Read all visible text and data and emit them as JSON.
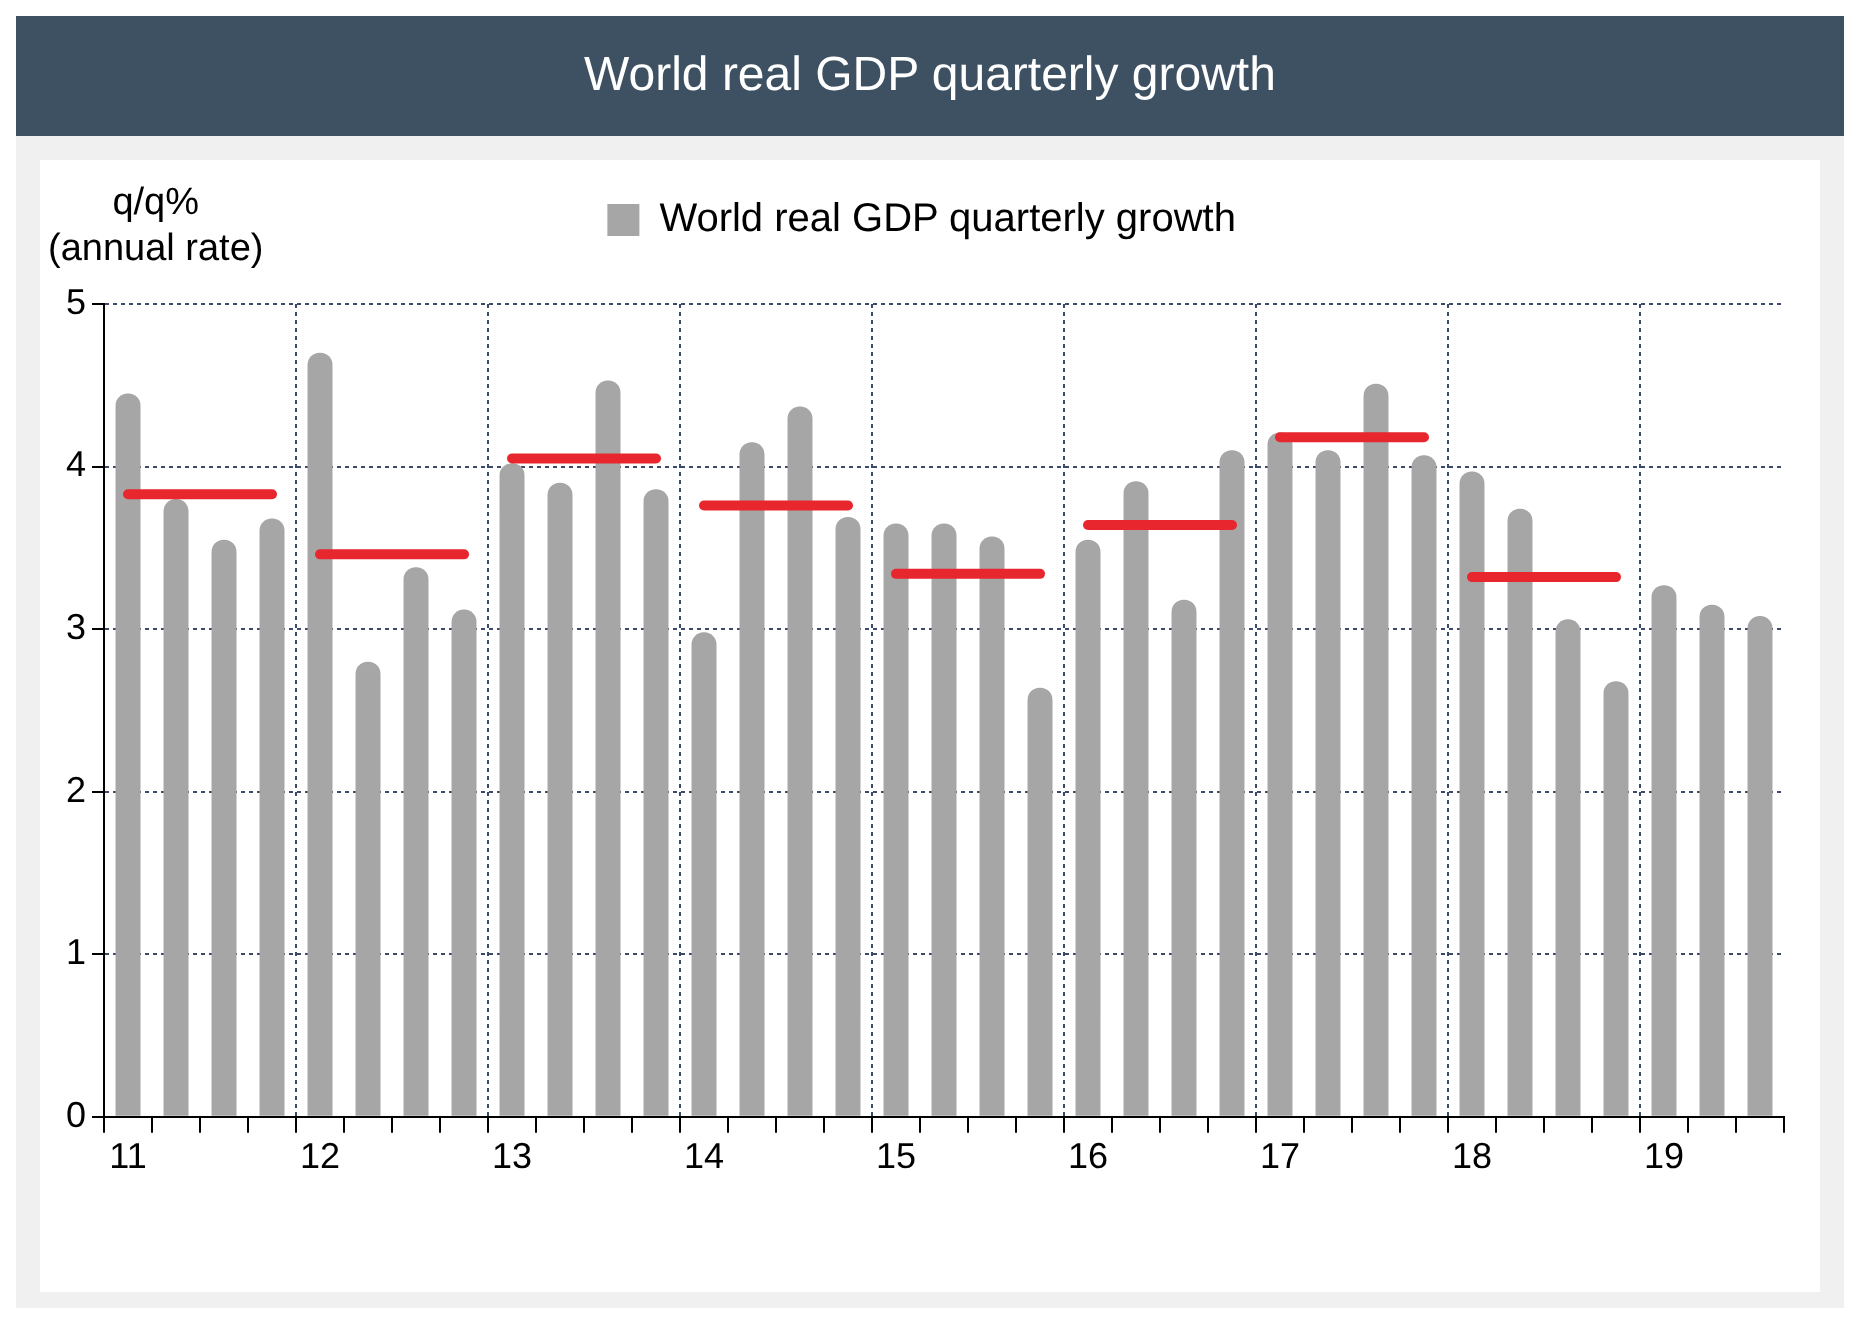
{
  "chart_data": {
    "type": "bar",
    "title": "World real GDP quarterly growth",
    "ylabel": "q/q%\n(annual rate)",
    "categories": [
      "11",
      null,
      null,
      null,
      "12",
      null,
      null,
      null,
      "13",
      null,
      null,
      null,
      "14",
      null,
      null,
      null,
      "15",
      null,
      null,
      null,
      "16",
      null,
      null,
      null,
      "17",
      null,
      null,
      null,
      "18",
      null,
      null,
      null,
      "19",
      null,
      null
    ],
    "series": [
      {
        "name": "World real GDP quarterly growth",
        "color": "#a6a6a6",
        "values": [
          4.45,
          3.8,
          3.55,
          3.68,
          4.7,
          2.8,
          3.38,
          3.12,
          4.02,
          3.9,
          4.53,
          3.86,
          2.98,
          4.15,
          4.37,
          3.69,
          3.65,
          3.65,
          3.57,
          2.64,
          3.55,
          3.91,
          3.18,
          4.1,
          4.21,
          4.1,
          4.51,
          4.07,
          3.97,
          3.74,
          3.06,
          2.68,
          3.27,
          3.15,
          3.08
        ]
      },
      {
        "type": "line",
        "color": "#e8262d",
        "values": [
          3.83,
          3.83,
          3.83,
          3.83,
          null,
          null,
          null,
          null,
          null,
          null,
          null,
          null,
          null,
          null,
          null,
          null,
          null,
          null,
          null,
          null,
          null,
          null,
          null,
          null,
          null,
          null,
          null,
          null,
          null,
          null,
          null,
          null,
          null,
          null,
          null
        ]
      },
      {
        "type": "line",
        "color": "#e8262d",
        "values": [
          null,
          null,
          null,
          null,
          3.46,
          3.46,
          3.46,
          3.46,
          null,
          null,
          null,
          null,
          null,
          null,
          null,
          null,
          null,
          null,
          null,
          null,
          null,
          null,
          null,
          null,
          null,
          null,
          null,
          null,
          null,
          null,
          null,
          null,
          null,
          null,
          null
        ]
      },
      {
        "type": "line",
        "color": "#e8262d",
        "values": [
          null,
          null,
          null,
          null,
          null,
          null,
          null,
          null,
          4.05,
          4.05,
          4.05,
          4.05,
          null,
          null,
          null,
          null,
          null,
          null,
          null,
          null,
          null,
          null,
          null,
          null,
          null,
          null,
          null,
          null,
          null,
          null,
          null,
          null,
          null,
          null,
          null
        ]
      },
      {
        "type": "line",
        "color": "#e8262d",
        "values": [
          null,
          null,
          null,
          null,
          null,
          null,
          null,
          null,
          null,
          null,
          null,
          null,
          3.76,
          3.76,
          3.76,
          3.76,
          null,
          null,
          null,
          null,
          null,
          null,
          null,
          null,
          null,
          null,
          null,
          null,
          null,
          null,
          null,
          null,
          null,
          null,
          null
        ]
      },
      {
        "type": "line",
        "color": "#e8262d",
        "values": [
          null,
          null,
          null,
          null,
          null,
          null,
          null,
          null,
          null,
          null,
          null,
          null,
          null,
          null,
          null,
          null,
          3.34,
          3.34,
          3.34,
          3.34,
          null,
          null,
          null,
          null,
          null,
          null,
          null,
          null,
          null,
          null,
          null,
          null,
          null,
          null,
          null
        ]
      },
      {
        "type": "line",
        "color": "#e8262d",
        "values": [
          null,
          null,
          null,
          null,
          null,
          null,
          null,
          null,
          null,
          null,
          null,
          null,
          null,
          null,
          null,
          null,
          null,
          null,
          null,
          null,
          3.64,
          3.64,
          3.64,
          3.64,
          null,
          null,
          null,
          null,
          null,
          null,
          null,
          null,
          null,
          null,
          null
        ]
      },
      {
        "type": "line",
        "color": "#e8262d",
        "values": [
          null,
          null,
          null,
          null,
          null,
          null,
          null,
          null,
          null,
          null,
          null,
          null,
          null,
          null,
          null,
          null,
          null,
          null,
          null,
          null,
          null,
          null,
          null,
          null,
          4.18,
          4.18,
          4.18,
          4.18,
          null,
          null,
          null,
          null,
          null,
          null,
          null
        ]
      },
      {
        "type": "line",
        "color": "#e8262d",
        "values": [
          null,
          null,
          null,
          null,
          null,
          null,
          null,
          null,
          null,
          null,
          null,
          null,
          null,
          null,
          null,
          null,
          null,
          null,
          null,
          null,
          null,
          null,
          null,
          null,
          null,
          null,
          null,
          null,
          3.32,
          3.32,
          3.32,
          3.32,
          null,
          null,
          null
        ]
      }
    ],
    "ylim": [
      0,
      5
    ],
    "yticks": [
      0,
      1,
      2,
      3,
      4,
      5
    ],
    "grid": true,
    "legend": "top",
    "marker": "none"
  }
}
